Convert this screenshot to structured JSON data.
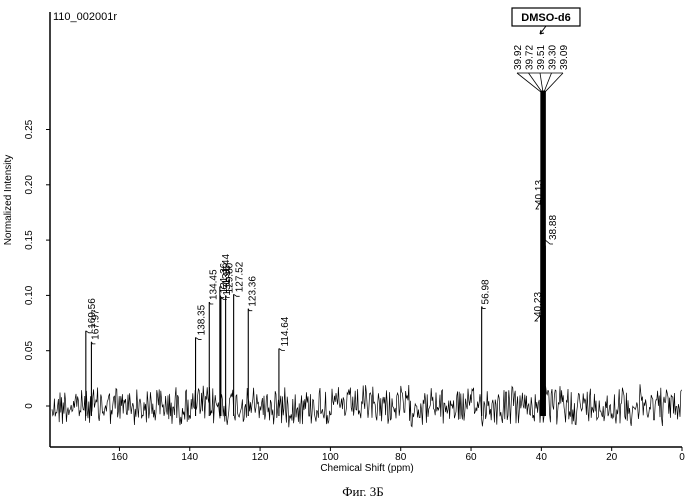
{
  "chart_data": {
    "type": "line",
    "title": "110_002001r",
    "xlabel": "Chemical Shift (ppm)",
    "ylabel": "Normalized Intensity",
    "xlim": [
      180,
      0
    ],
    "ylim": [
      -0.02,
      0.29
    ],
    "x_ticks": [
      "160",
      "140",
      "120",
      "100",
      "80",
      "60",
      "40",
      "20",
      "0"
    ],
    "y_ticks": [
      "0",
      "0.05",
      "0.10",
      "0.15",
      "0.20",
      "0.25"
    ],
    "grid": false,
    "solvent_label": "DMSO-d6",
    "peaks": [
      {
        "ppm": 169.56,
        "label": "169.56",
        "intensity": 0.068
      },
      {
        "ppm": 167.97,
        "label": "167.97",
        "intensity": 0.058
      },
      {
        "ppm": 138.35,
        "label": "138.35",
        "intensity": 0.062
      },
      {
        "ppm": 134.45,
        "label": "134.45",
        "intensity": 0.094
      },
      {
        "ppm": 131.44,
        "label": "131.44",
        "intensity": 0.108
      },
      {
        "ppm": 131.36,
        "label": "131.36",
        "intensity": 0.1
      },
      {
        "ppm": 131.15,
        "label": "131.15",
        "intensity": 0.098
      },
      {
        "ppm": 129.8,
        "label": "129.80",
        "intensity": 0.1
      },
      {
        "ppm": 127.52,
        "label": "127.52",
        "intensity": 0.101
      },
      {
        "ppm": 123.36,
        "label": "123.36",
        "intensity": 0.088
      },
      {
        "ppm": 114.64,
        "label": "114.64",
        "intensity": 0.052
      },
      {
        "ppm": 56.98,
        "label": "56.98",
        "intensity": 0.09
      },
      {
        "ppm": 40.23,
        "label": "40.23",
        "intensity": 0.082
      },
      {
        "ppm": 40.13,
        "label": "40.13",
        "intensity": 0.2
      },
      {
        "ppm": 39.92,
        "label": "39.92",
        "intensity": 0.285
      },
      {
        "ppm": 39.72,
        "label": "39.72",
        "intensity": 0.285
      },
      {
        "ppm": 39.51,
        "label": "39.51",
        "intensity": 0.285
      },
      {
        "ppm": 39.3,
        "label": "39.30",
        "intensity": 0.285
      },
      {
        "ppm": 39.09,
        "label": "39.09",
        "intensity": 0.285
      },
      {
        "ppm": 38.88,
        "label": "38.88",
        "intensity": 0.145
      }
    ]
  },
  "caption": "Фиг. 3Б"
}
